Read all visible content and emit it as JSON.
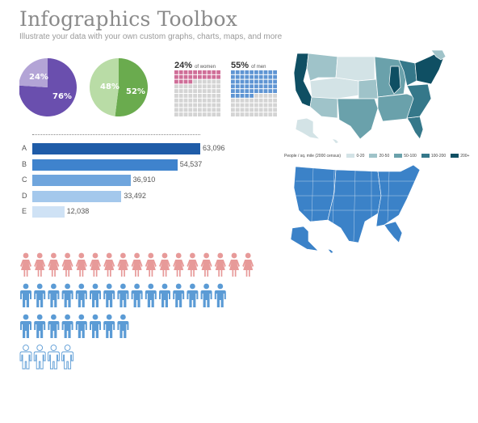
{
  "header": {
    "title": "Infographics Toolbox",
    "subtitle": "Illustrate your data with your own custom graphs, charts, maps, and more"
  },
  "pies": [
    {
      "labels": [
        "24%",
        "76%"
      ],
      "values": [
        24,
        76
      ],
      "colors": [
        "#b3a4d6",
        "#6a4fae"
      ]
    },
    {
      "labels": [
        "48%",
        "52%"
      ],
      "values": [
        48,
        52
      ],
      "colors": [
        "#b9dca6",
        "#6aab4e"
      ]
    }
  ],
  "waffles": [
    {
      "percent": "24%",
      "label": "of women",
      "value": 24,
      "color": "#cf6e98",
      "empty_color": "#d4d4d4"
    },
    {
      "percent": "55%",
      "label": "of men",
      "value": 55,
      "color": "#5f95d3",
      "empty_color": "#d4d4d4"
    }
  ],
  "chart_data": {
    "type": "bar",
    "categories": [
      "A",
      "B",
      "C",
      "D",
      "E"
    ],
    "values": [
      63096,
      54537,
      36910,
      33492,
      12038
    ],
    "value_labels": [
      "63,096",
      "54,537",
      "36,910",
      "33,492",
      "12,038"
    ],
    "colors": [
      "#1f5ca8",
      "#3f83cd",
      "#6fa5dd",
      "#a4c8ec",
      "#cfe2f5"
    ],
    "title": "",
    "xlabel": "",
    "ylabel": "",
    "xlim": [
      0,
      63096
    ]
  },
  "pictograms": [
    {
      "figure": "woman",
      "count": 17,
      "color": "#e79a99",
      "outline": false
    },
    {
      "figure": "man",
      "count": 15,
      "color": "#5b9bd5",
      "outline": false
    },
    {
      "figure": "man",
      "count": 8,
      "color": "#5b9bd5",
      "outline": false
    },
    {
      "figure": "man",
      "count": 4,
      "color": "#5b9bd5",
      "outline": true
    }
  ],
  "legend": {
    "title": "People / sq. mile (2000 census)",
    "items": [
      {
        "label": "0-20",
        "color": "#d3e3e6"
      },
      {
        "label": "20-50",
        "color": "#9fc3c9"
      },
      {
        "label": "50-100",
        "color": "#6aa1ab"
      },
      {
        "label": "100-200",
        "color": "#35788a"
      },
      {
        "label": "200+",
        "color": "#0f4f63"
      }
    ]
  },
  "maps": {
    "choropleth_map": "usa-choropleth-map",
    "blue_map": "usa-blue-map",
    "blue_color": "#3b82c8"
  }
}
